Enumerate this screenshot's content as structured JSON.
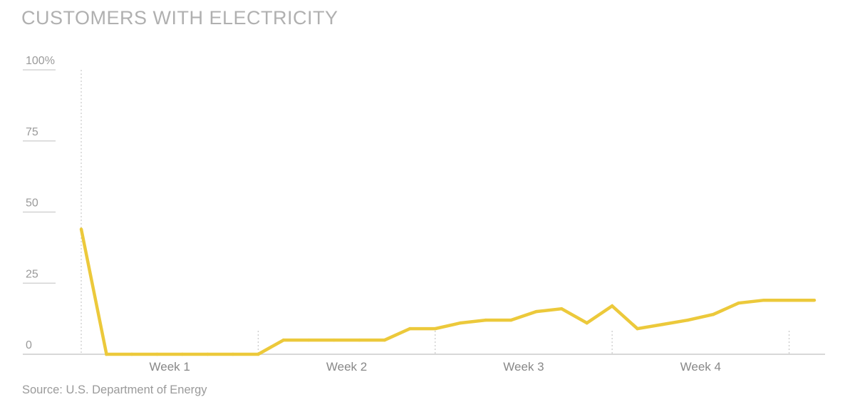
{
  "title": "CUSTOMERS WITH ELECTRICITY",
  "source": "Source: U.S. Department of Energy",
  "colors": {
    "line": "#ecc93b",
    "axis": "#cccccc",
    "grid_dots": "#c8c8c8",
    "text": "#9a9a9a"
  },
  "chart_data": {
    "type": "line",
    "title": "CUSTOMERS WITH ELECTRICITY",
    "xlabel": "",
    "ylabel": "",
    "ylim": [
      0,
      100
    ],
    "xlim": [
      0,
      29
    ],
    "y_ticks": [
      {
        "value": 0,
        "label": "0"
      },
      {
        "value": 25,
        "label": "25"
      },
      {
        "value": 50,
        "label": "50"
      },
      {
        "value": 75,
        "label": "75"
      },
      {
        "value": 100,
        "label": "100%"
      }
    ],
    "x_categories": [
      "Week 1",
      "Week 2",
      "Week 3",
      "Week 4"
    ],
    "week_dividers": [
      0,
      7,
      14,
      21,
      28
    ],
    "grid": false,
    "series": [
      {
        "x": [
          0,
          1,
          2,
          3,
          4,
          5,
          6,
          7,
          8,
          9,
          10,
          11,
          12,
          13,
          14,
          15,
          16,
          17,
          18,
          19,
          20,
          21,
          22,
          23,
          24,
          25,
          26,
          27,
          28,
          29
        ],
        "y": [
          44,
          0,
          0,
          0,
          0,
          0,
          0,
          0,
          5,
          5,
          5,
          5,
          5,
          9,
          9,
          11,
          12,
          12,
          15,
          16,
          11,
          17,
          9,
          10.5,
          12,
          14,
          18,
          19,
          19,
          19
        ]
      }
    ]
  }
}
